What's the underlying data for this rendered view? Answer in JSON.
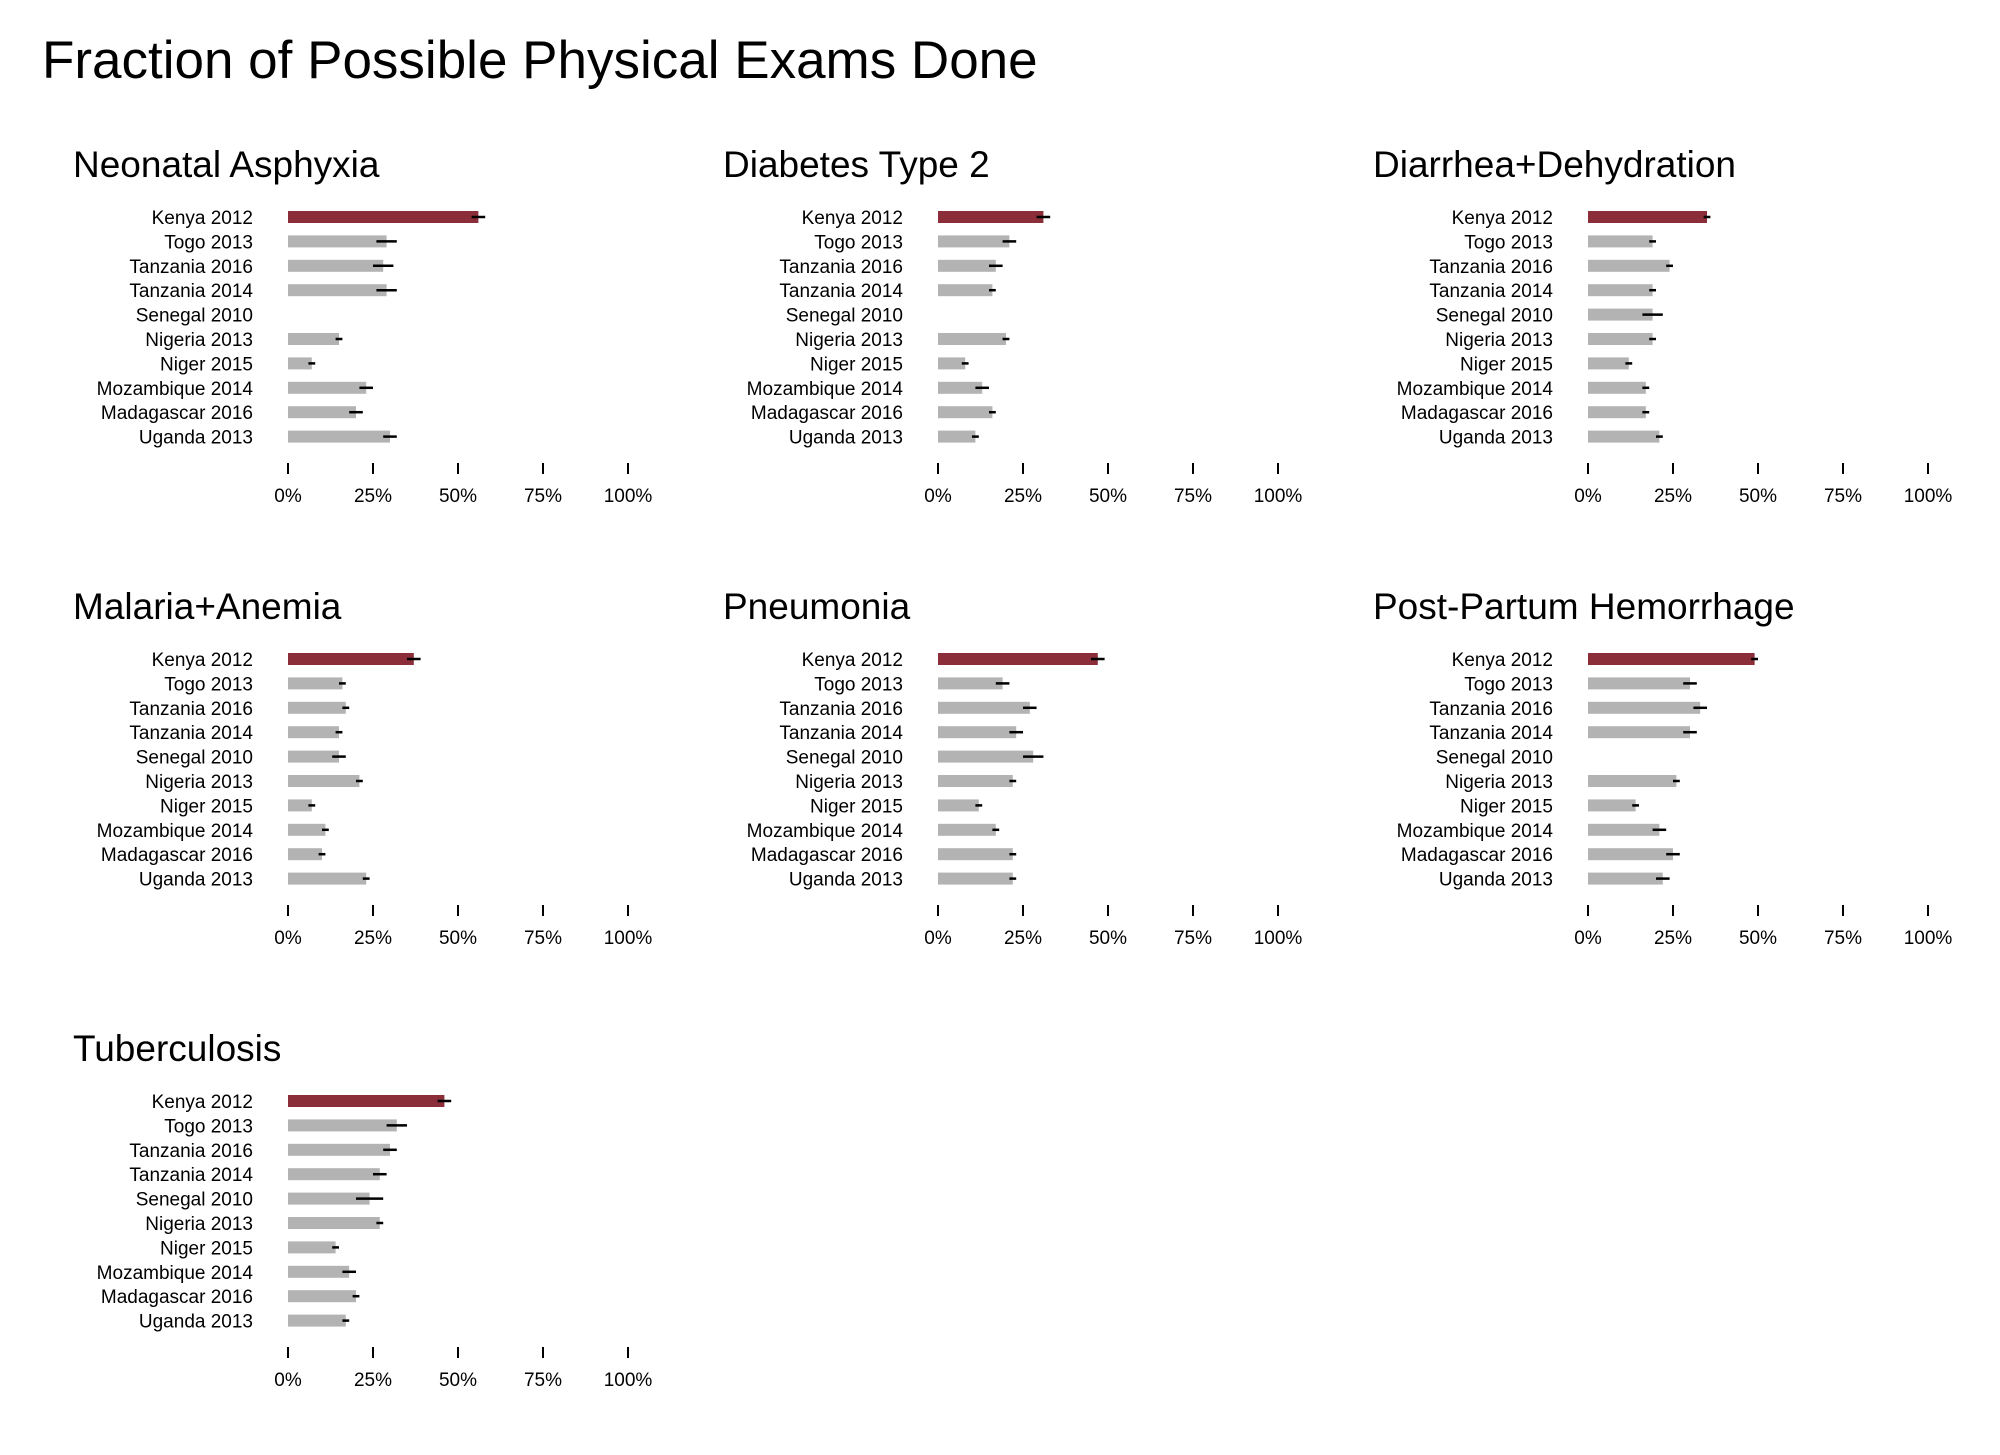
{
  "title": "Fraction of Possible Physical Exams Done",
  "colors": {
    "highlight": "#8b2e3a",
    "bar": "#b3b3b3",
    "error": "#000000"
  },
  "chart_data": {
    "type": "bar",
    "orientation": "horizontal",
    "categories": [
      "Kenya 2012",
      "Togo 2013",
      "Tanzania 2016",
      "Tanzania 2014",
      "Senegal 2010",
      "Nigeria 2013",
      "Niger 2015",
      "Mozambique 2014",
      "Madagascar 2016",
      "Uganda 2013"
    ],
    "highlight_category": "Kenya 2012",
    "xlim": [
      0,
      100
    ],
    "xticks": [
      0,
      25,
      50,
      75,
      100
    ],
    "xtick_labels": [
      "0%",
      "25%",
      "50%",
      "75%",
      "100%"
    ],
    "grid": false,
    "legend": false,
    "panels": [
      {
        "title": "Neonatal Asphyxia",
        "values": [
          56,
          29,
          28,
          29,
          null,
          15,
          7,
          23,
          20,
          30
        ],
        "errors": [
          2,
          3,
          3,
          3,
          null,
          1,
          1,
          2,
          2,
          2
        ]
      },
      {
        "title": "Diabetes Type 2",
        "values": [
          31,
          21,
          17,
          16,
          null,
          20,
          8,
          13,
          16,
          11
        ],
        "errors": [
          2,
          2,
          2,
          1,
          null,
          1,
          1,
          2,
          1,
          1
        ]
      },
      {
        "title": "Diarrhea+Dehydration",
        "values": [
          35,
          19,
          24,
          19,
          19,
          19,
          12,
          17,
          17,
          21
        ],
        "errors": [
          1,
          1,
          1,
          1,
          3,
          1,
          1,
          1,
          1,
          1
        ]
      },
      {
        "title": "Malaria+Anemia",
        "values": [
          37,
          16,
          17,
          15,
          15,
          21,
          7,
          11,
          10,
          23
        ],
        "errors": [
          2,
          1,
          1,
          1,
          2,
          1,
          1,
          1,
          1,
          1
        ]
      },
      {
        "title": "Pneumonia",
        "values": [
          47,
          19,
          27,
          23,
          28,
          22,
          12,
          17,
          22,
          22
        ],
        "errors": [
          2,
          2,
          2,
          2,
          3,
          1,
          1,
          1,
          1,
          1
        ]
      },
      {
        "title": "Post-Partum Hemorrhage",
        "values": [
          49,
          30,
          33,
          30,
          null,
          26,
          14,
          21,
          25,
          22
        ],
        "errors": [
          1,
          2,
          2,
          2,
          null,
          1,
          1,
          2,
          2,
          2
        ]
      },
      {
        "title": "Tuberculosis",
        "values": [
          46,
          32,
          30,
          27,
          24,
          27,
          14,
          18,
          20,
          17
        ],
        "errors": [
          2,
          3,
          2,
          2,
          4,
          1,
          1,
          2,
          1,
          1
        ]
      }
    ]
  }
}
